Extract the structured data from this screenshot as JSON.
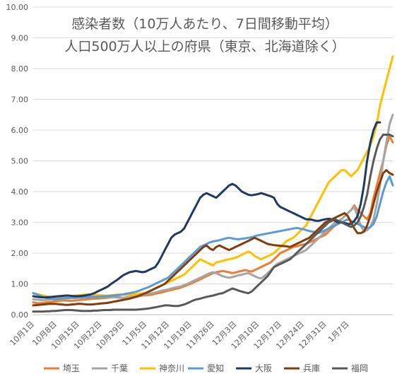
{
  "chart_data": {
    "type": "line",
    "title_lines": [
      "感染者数（10万人あたり、7日間移動平均）",
      "人口500万人以上の府県（東京、北海道除く）"
    ],
    "xlabel": "",
    "ylabel": "",
    "ylim": [
      0,
      10
    ],
    "yticks": [
      "0.00",
      "1.00",
      "2.00",
      "3.00",
      "4.00",
      "5.00",
      "6.00",
      "7.00",
      "8.00",
      "9.00",
      "10.00"
    ],
    "x_start": "10月1日",
    "x_end": "1月10日",
    "xtick_labels": [
      "10月1日",
      "10月8日",
      "10月15日",
      "10月22日",
      "10月29日",
      "11月5日",
      "11月12日",
      "11月19日",
      "11月26日",
      "12月3日",
      "12月10日",
      "12月17日",
      "12月24日",
      "12月31日",
      "1月7日"
    ],
    "grid": true,
    "legend_position": "bottom",
    "series": [
      {
        "name": "埼玉",
        "color": "#ED7D31",
        "values": [
          0.4,
          0.38,
          0.37,
          0.38,
          0.4,
          0.41,
          0.42,
          0.44,
          0.45,
          0.46,
          0.46,
          0.45,
          0.45,
          0.46,
          0.47,
          0.48,
          0.49,
          0.5,
          0.51,
          0.52,
          0.52,
          0.53,
          0.54,
          0.55,
          0.56,
          0.57,
          0.57,
          0.56,
          0.55,
          0.55,
          0.56,
          0.57,
          0.58,
          0.6,
          0.62,
          0.63,
          0.64,
          0.65,
          0.68,
          0.7,
          0.72,
          0.75,
          0.78,
          0.8,
          0.83,
          0.85,
          0.88,
          0.92,
          0.96,
          1.0,
          1.05,
          1.1,
          1.15,
          1.2,
          1.25,
          1.3,
          1.35,
          1.38,
          1.4,
          1.42,
          1.4,
          1.38,
          1.35,
          1.37,
          1.4,
          1.42,
          1.45,
          1.42,
          1.4,
          1.45,
          1.5,
          1.55,
          1.6,
          1.65,
          1.7,
          1.8,
          1.9,
          2.0,
          2.05,
          2.1,
          2.15,
          2.2,
          2.22,
          2.25,
          2.28,
          2.3,
          2.35,
          2.4,
          2.45,
          2.5,
          2.55,
          2.6,
          2.7,
          2.8,
          2.9,
          3.0,
          3.1,
          3.2,
          3.3,
          3.4,
          3.55,
          3.4,
          3.3,
          3.2,
          3.1,
          3.3,
          3.8,
          4.2,
          4.6,
          5.0,
          5.5,
          5.8,
          5.6
        ]
      },
      {
        "name": "千葉",
        "color": "#A5A5A5",
        "values": [
          0.5,
          0.49,
          0.48,
          0.47,
          0.48,
          0.49,
          0.5,
          0.5,
          0.51,
          0.52,
          0.53,
          0.53,
          0.54,
          0.54,
          0.55,
          0.55,
          0.56,
          0.56,
          0.57,
          0.57,
          0.57,
          0.58,
          0.58,
          0.58,
          0.58,
          0.57,
          0.56,
          0.55,
          0.55,
          0.56,
          0.57,
          0.58,
          0.6,
          0.62,
          0.64,
          0.66,
          0.68,
          0.7,
          0.72,
          0.75,
          0.78,
          0.8,
          0.82,
          0.85,
          0.88,
          0.9,
          0.92,
          0.96,
          1.0,
          1.05,
          1.1,
          1.15,
          1.2,
          1.25,
          1.3,
          1.35,
          1.38,
          1.35,
          1.3,
          1.25,
          1.22,
          1.2,
          1.22,
          1.25,
          1.28,
          1.3,
          1.33,
          1.35,
          1.3,
          1.25,
          1.2,
          1.18,
          1.25,
          1.35,
          1.45,
          1.55,
          1.65,
          1.7,
          1.75,
          1.8,
          1.85,
          1.9,
          1.95,
          2.0,
          2.05,
          2.1,
          2.2,
          2.3,
          2.4,
          2.5,
          2.6,
          2.7,
          2.8,
          2.9,
          3.0,
          3.05,
          3.1,
          3.2,
          3.3,
          3.4,
          3.5,
          3.2,
          2.9,
          2.7,
          2.75,
          2.85,
          3.1,
          3.6,
          4.2,
          5.0,
          5.6,
          6.2,
          6.5
        ]
      },
      {
        "name": "神奈川",
        "color": "#FFC000",
        "values": [
          0.7,
          0.68,
          0.65,
          0.62,
          0.6,
          0.58,
          0.57,
          0.58,
          0.58,
          0.59,
          0.6,
          0.6,
          0.61,
          0.62,
          0.63,
          0.64,
          0.65,
          0.66,
          0.66,
          0.65,
          0.64,
          0.63,
          0.62,
          0.62,
          0.63,
          0.64,
          0.65,
          0.66,
          0.65,
          0.64,
          0.64,
          0.65,
          0.66,
          0.68,
          0.7,
          0.72,
          0.75,
          0.8,
          0.85,
          0.9,
          0.95,
          1.0,
          1.05,
          1.1,
          1.15,
          1.2,
          1.25,
          1.3,
          1.4,
          1.5,
          1.6,
          1.7,
          1.8,
          1.75,
          1.7,
          1.65,
          1.6,
          1.7,
          1.72,
          1.75,
          1.78,
          1.8,
          1.82,
          1.85,
          1.9,
          1.95,
          2.0,
          2.05,
          2.0,
          1.9,
          1.85,
          1.8,
          1.85,
          1.9,
          1.95,
          2.0,
          2.1,
          2.2,
          2.3,
          2.4,
          2.45,
          2.5,
          2.6,
          2.7,
          2.8,
          2.9,
          3.1,
          3.3,
          3.5,
          3.7,
          3.9,
          4.1,
          4.3,
          4.4,
          4.5,
          4.6,
          4.7,
          4.7,
          4.6,
          4.5,
          4.6,
          4.7,
          4.9,
          5.1,
          5.3,
          5.5,
          5.8,
          6.2,
          6.8,
          7.2,
          7.6,
          8.0,
          8.4
        ]
      },
      {
        "name": "愛知",
        "color": "#5B9BD5",
        "values": [
          0.7,
          0.66,
          0.62,
          0.58,
          0.55,
          0.53,
          0.52,
          0.51,
          0.52,
          0.53,
          0.54,
          0.54,
          0.55,
          0.55,
          0.56,
          0.56,
          0.57,
          0.57,
          0.58,
          0.58,
          0.58,
          0.59,
          0.6,
          0.6,
          0.61,
          0.62,
          0.63,
          0.64,
          0.66,
          0.68,
          0.7,
          0.72,
          0.74,
          0.78,
          0.82,
          0.86,
          0.9,
          0.95,
          1.0,
          1.05,
          1.1,
          1.15,
          1.2,
          1.3,
          1.4,
          1.5,
          1.6,
          1.7,
          1.8,
          1.9,
          2.0,
          2.1,
          2.2,
          2.25,
          2.3,
          2.35,
          2.38,
          2.4,
          2.42,
          2.45,
          2.48,
          2.5,
          2.48,
          2.46,
          2.45,
          2.47,
          2.48,
          2.5,
          2.52,
          2.55,
          2.58,
          2.6,
          2.62,
          2.64,
          2.66,
          2.68,
          2.7,
          2.72,
          2.74,
          2.76,
          2.78,
          2.8,
          2.82,
          2.8,
          2.78,
          2.75,
          2.72,
          2.7,
          2.68,
          2.66,
          2.7,
          2.75,
          2.8,
          2.85,
          2.9,
          2.95,
          3.0,
          3.05,
          3.1,
          3.05,
          3.0,
          2.95,
          2.9,
          2.85,
          2.8,
          2.85,
          2.95,
          3.2,
          3.6,
          4.0,
          4.3,
          4.5,
          4.2
        ]
      },
      {
        "name": "大阪",
        "color": "#1F3864",
        "values": [
          0.6,
          0.58,
          0.57,
          0.56,
          0.56,
          0.57,
          0.58,
          0.59,
          0.6,
          0.61,
          0.62,
          0.62,
          0.61,
          0.6,
          0.6,
          0.61,
          0.62,
          0.64,
          0.66,
          0.7,
          0.75,
          0.8,
          0.85,
          0.9,
          0.98,
          1.05,
          1.12,
          1.2,
          1.28,
          1.33,
          1.38,
          1.4,
          1.42,
          1.4,
          1.38,
          1.4,
          1.45,
          1.5,
          1.55,
          1.7,
          1.9,
          2.1,
          2.3,
          2.5,
          2.6,
          2.65,
          2.7,
          2.8,
          3.0,
          3.2,
          3.4,
          3.6,
          3.8,
          3.9,
          3.95,
          3.9,
          3.85,
          3.8,
          3.9,
          4.0,
          4.1,
          4.2,
          4.25,
          4.2,
          4.1,
          4.0,
          3.95,
          3.9,
          3.88,
          3.9,
          3.92,
          3.95,
          3.92,
          3.88,
          3.85,
          3.8,
          3.6,
          3.5,
          3.45,
          3.4,
          3.35,
          3.3,
          3.25,
          3.2,
          3.15,
          3.1,
          3.1,
          3.08,
          3.05,
          3.05,
          3.08,
          3.1,
          3.12,
          3.1,
          3.05,
          3.0,
          3.0,
          2.98,
          2.95,
          2.95,
          3.05,
          3.2,
          3.6,
          4.2,
          5.0,
          5.6,
          6.0,
          6.25,
          6.25
        ]
      },
      {
        "name": "兵庫",
        "color": "#843C0C",
        "values": [
          0.3,
          0.31,
          0.32,
          0.33,
          0.34,
          0.35,
          0.35,
          0.35,
          0.34,
          0.33,
          0.32,
          0.32,
          0.33,
          0.34,
          0.35,
          0.35,
          0.34,
          0.33,
          0.33,
          0.34,
          0.35,
          0.36,
          0.37,
          0.38,
          0.4,
          0.42,
          0.44,
          0.46,
          0.48,
          0.5,
          0.52,
          0.55,
          0.58,
          0.62,
          0.66,
          0.7,
          0.75,
          0.8,
          0.85,
          0.9,
          0.95,
          1.0,
          1.1,
          1.2,
          1.3,
          1.4,
          1.5,
          1.6,
          1.7,
          1.8,
          1.9,
          2.0,
          2.1,
          2.2,
          2.25,
          2.15,
          2.1,
          2.2,
          2.25,
          2.2,
          2.15,
          2.1,
          2.15,
          2.2,
          2.25,
          2.3,
          2.35,
          2.4,
          2.45,
          2.5,
          2.45,
          2.4,
          2.35,
          2.3,
          2.28,
          2.26,
          2.25,
          2.24,
          2.23,
          2.22,
          2.2,
          2.25,
          2.3,
          2.35,
          2.4,
          2.45,
          2.5,
          2.6,
          2.7,
          2.8,
          2.9,
          3.0,
          3.05,
          3.1,
          3.15,
          3.2,
          3.25,
          3.3,
          3.2,
          3.0,
          2.8,
          2.65,
          2.65,
          2.7,
          2.9,
          3.2,
          3.6,
          4.0,
          4.3,
          4.6,
          4.7,
          4.6,
          4.55
        ]
      },
      {
        "name": "福岡",
        "color": "#595959",
        "values": [
          0.1,
          0.1,
          0.1,
          0.1,
          0.11,
          0.11,
          0.12,
          0.12,
          0.13,
          0.14,
          0.15,
          0.15,
          0.15,
          0.14,
          0.13,
          0.12,
          0.12,
          0.12,
          0.12,
          0.13,
          0.13,
          0.14,
          0.15,
          0.15,
          0.15,
          0.16,
          0.16,
          0.16,
          0.16,
          0.16,
          0.16,
          0.16,
          0.16,
          0.17,
          0.18,
          0.19,
          0.2,
          0.22,
          0.24,
          0.26,
          0.28,
          0.3,
          0.3,
          0.29,
          0.28,
          0.28,
          0.3,
          0.33,
          0.37,
          0.42,
          0.47,
          0.5,
          0.52,
          0.55,
          0.58,
          0.6,
          0.62,
          0.65,
          0.68,
          0.7,
          0.75,
          0.8,
          0.85,
          0.82,
          0.78,
          0.75,
          0.72,
          0.7,
          0.75,
          0.85,
          0.95,
          1.05,
          1.15,
          1.25,
          1.4,
          1.55,
          1.6,
          1.65,
          1.7,
          1.75,
          1.8,
          1.9,
          2.0,
          2.1,
          2.2,
          2.3,
          2.4,
          2.5,
          2.6,
          2.7,
          2.8,
          2.9,
          3.0,
          3.05,
          3.1,
          3.05,
          3.0,
          2.95,
          2.9,
          2.85,
          2.9,
          3.0,
          3.2,
          3.5,
          3.9,
          4.5,
          5.0,
          5.4,
          5.7,
          5.85,
          5.85,
          5.85,
          5.8
        ]
      }
    ]
  }
}
